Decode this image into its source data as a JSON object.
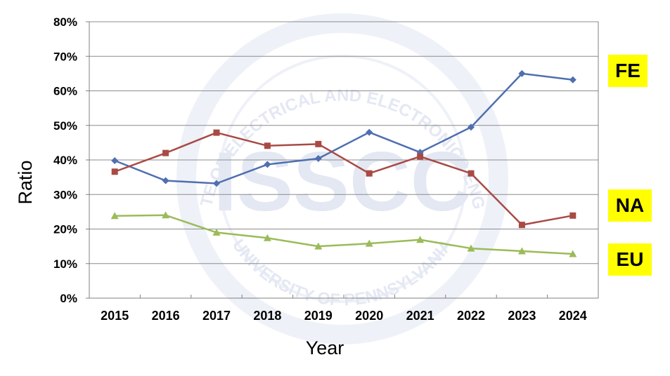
{
  "chart_data": {
    "type": "line",
    "xlabel": "Year",
    "ylabel": "Ratio",
    "categories": [
      "2015",
      "2016",
      "2017",
      "2018",
      "2019",
      "2020",
      "2021",
      "2022",
      "2023",
      "2024"
    ],
    "ylim": [
      0,
      80
    ],
    "y_ticks": [
      "0%",
      "10%",
      "20%",
      "30%",
      "40%",
      "50%",
      "60%",
      "70%",
      "80%"
    ],
    "grid": true,
    "series": [
      {
        "name": "FE",
        "color": "#4f6fb0",
        "marker": "diamond",
        "values": [
          39.8,
          34.0,
          33.2,
          38.7,
          40.4,
          48.0,
          42.2,
          49.5,
          65.0,
          63.2
        ]
      },
      {
        "name": "NA",
        "color": "#a94a45",
        "marker": "square",
        "values": [
          36.6,
          42.0,
          47.9,
          44.1,
          44.6,
          36.1,
          41.0,
          36.1,
          21.2,
          23.9
        ]
      },
      {
        "name": "EU",
        "color": "#9bbb59",
        "marker": "triangle",
        "values": [
          23.8,
          24.0,
          19.0,
          17.4,
          15.0,
          15.8,
          16.9,
          14.4,
          13.6,
          12.8
        ]
      }
    ],
    "legend": [
      {
        "label": "FE"
      },
      {
        "label": "NA"
      },
      {
        "label": "EU"
      }
    ],
    "watermark": {
      "center_text": "ISSCC",
      "ring_text": "INSTITUTE OF ELECTRICAL AND ELECTRONICS ENGINEERS",
      "bottom_text": "UNIVERSITY OF PENNSYLVANIA"
    }
  }
}
